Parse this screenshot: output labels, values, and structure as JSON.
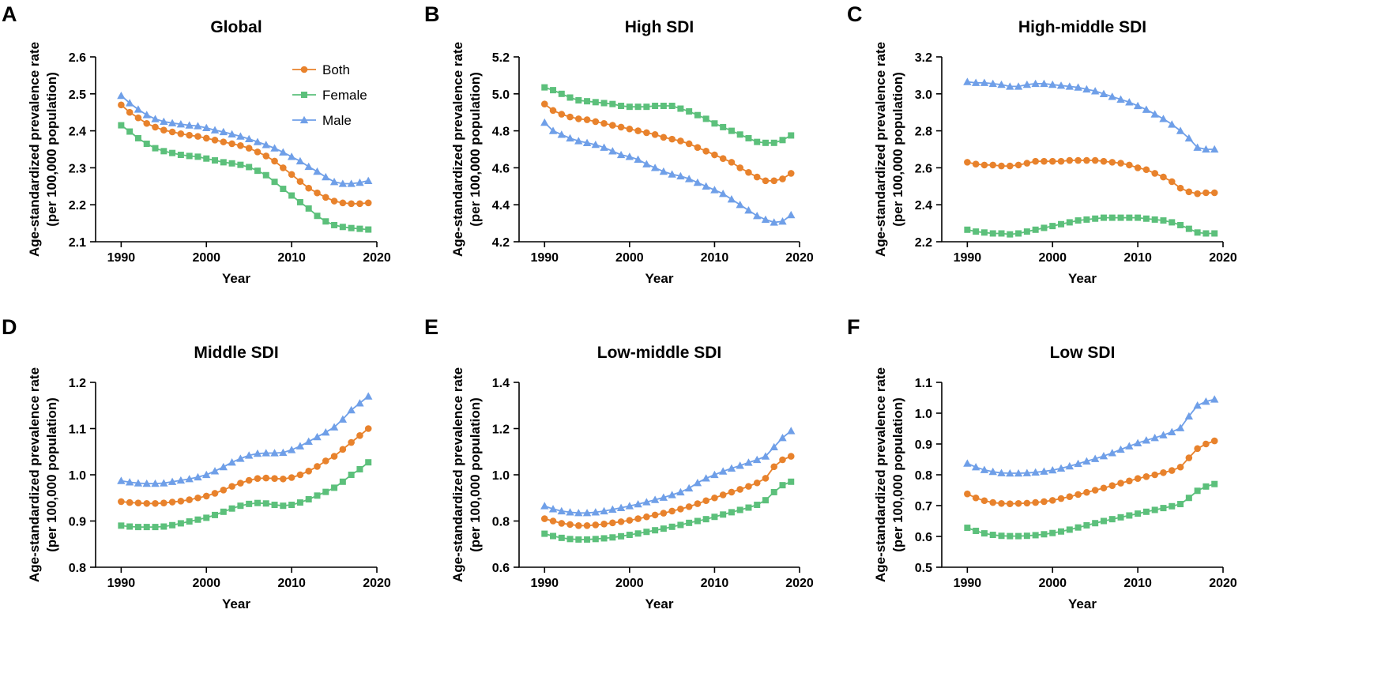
{
  "figure": {
    "legend": [
      {
        "name": "Both",
        "color": "#e8822c",
        "marker": "circle"
      },
      {
        "name": "Female",
        "color": "#5cc07b",
        "marker": "square"
      },
      {
        "name": "Male",
        "color": "#6f9fe8",
        "marker": "triangle"
      }
    ]
  },
  "chart_data": [
    {
      "type": "line",
      "panel": "A",
      "title": "Global",
      "xlabel": "Year",
      "ylabel": [
        "Age-standardized prevalence rate",
        "(per 100,000 population)"
      ],
      "xlim": [
        1987,
        2020
      ],
      "xticks": [
        1990,
        2000,
        2010,
        2020
      ],
      "ylim": [
        2.1,
        2.6
      ],
      "yticks": [
        "2.1",
        "2.2",
        "2.3",
        "2.4",
        "2.5",
        "2.6"
      ],
      "legend": true,
      "x": [
        1990,
        1991,
        1992,
        1993,
        1994,
        1995,
        1996,
        1997,
        1998,
        1999,
        2000,
        2001,
        2002,
        2003,
        2004,
        2005,
        2006,
        2007,
        2008,
        2009,
        2010,
        2011,
        2012,
        2013,
        2014,
        2015,
        2016,
        2017,
        2018,
        2019
      ],
      "series": [
        {
          "name": "Both",
          "values": [
            2.47,
            2.45,
            2.435,
            2.42,
            2.41,
            2.402,
            2.397,
            2.392,
            2.388,
            2.385,
            2.38,
            2.375,
            2.37,
            2.365,
            2.36,
            2.353,
            2.343,
            2.332,
            2.318,
            2.3,
            2.282,
            2.263,
            2.245,
            2.232,
            2.22,
            2.21,
            2.205,
            2.203,
            2.203,
            2.205
          ]
        },
        {
          "name": "Female",
          "values": [
            2.415,
            2.398,
            2.38,
            2.365,
            2.353,
            2.345,
            2.34,
            2.335,
            2.332,
            2.33,
            2.325,
            2.32,
            2.315,
            2.312,
            2.308,
            2.302,
            2.292,
            2.28,
            2.262,
            2.243,
            2.225,
            2.207,
            2.19,
            2.17,
            2.155,
            2.145,
            2.14,
            2.137,
            2.135,
            2.133
          ]
        },
        {
          "name": "Male",
          "values": [
            2.495,
            2.475,
            2.458,
            2.443,
            2.432,
            2.425,
            2.421,
            2.418,
            2.415,
            2.413,
            2.408,
            2.402,
            2.397,
            2.391,
            2.385,
            2.378,
            2.37,
            2.362,
            2.353,
            2.342,
            2.33,
            2.318,
            2.303,
            2.29,
            2.275,
            2.262,
            2.257,
            2.257,
            2.26,
            2.265
          ]
        }
      ]
    },
    {
      "type": "line",
      "panel": "B",
      "title": "High SDI",
      "xlabel": "Year",
      "ylabel": [
        "Age-standardized prevalence rate",
        "(per 100,000 population)"
      ],
      "xlim": [
        1987,
        2020
      ],
      "xticks": [
        1990,
        2000,
        2010,
        2020
      ],
      "ylim": [
        4.2,
        5.2
      ],
      "yticks": [
        "4.2",
        "4.4",
        "4.6",
        "4.8",
        "5.0",
        "5.2"
      ],
      "legend": false,
      "x": [
        1990,
        1991,
        1992,
        1993,
        1994,
        1995,
        1996,
        1997,
        1998,
        1999,
        2000,
        2001,
        2002,
        2003,
        2004,
        2005,
        2006,
        2007,
        2008,
        2009,
        2010,
        2011,
        2012,
        2013,
        2014,
        2015,
        2016,
        2017,
        2018,
        2019
      ],
      "series": [
        {
          "name": "Both",
          "values": [
            4.945,
            4.91,
            4.89,
            4.875,
            4.865,
            4.86,
            4.85,
            4.84,
            4.83,
            4.82,
            4.81,
            4.8,
            4.79,
            4.78,
            4.765,
            4.755,
            4.745,
            4.73,
            4.71,
            4.69,
            4.67,
            4.65,
            4.63,
            4.6,
            4.575,
            4.55,
            4.53,
            4.53,
            4.54,
            4.57
          ]
        },
        {
          "name": "Female",
          "values": [
            5.035,
            5.02,
            5.0,
            4.98,
            4.965,
            4.96,
            4.955,
            4.95,
            4.945,
            4.935,
            4.93,
            4.93,
            4.93,
            4.935,
            4.935,
            4.935,
            4.92,
            4.905,
            4.885,
            4.865,
            4.84,
            4.82,
            4.8,
            4.78,
            4.76,
            4.74,
            4.735,
            4.735,
            4.75,
            4.775
          ]
        },
        {
          "name": "Male",
          "values": [
            4.845,
            4.8,
            4.78,
            4.76,
            4.745,
            4.735,
            4.725,
            4.71,
            4.69,
            4.67,
            4.66,
            4.645,
            4.62,
            4.6,
            4.58,
            4.565,
            4.555,
            4.54,
            4.52,
            4.5,
            4.48,
            4.46,
            4.43,
            4.4,
            4.37,
            4.34,
            4.32,
            4.305,
            4.31,
            4.345
          ]
        }
      ]
    },
    {
      "type": "line",
      "panel": "C",
      "title": "High-middle SDI",
      "xlabel": "Year",
      "ylabel": [
        "Age-standardized prevalence rate",
        "(per 100,000 population)"
      ],
      "xlim": [
        1987,
        2020
      ],
      "xticks": [
        1990,
        2000,
        2010,
        2020
      ],
      "ylim": [
        2.2,
        3.2
      ],
      "yticks": [
        "2.2",
        "2.4",
        "2.6",
        "2.8",
        "3.0",
        "3.2"
      ],
      "legend": false,
      "x": [
        1990,
        1991,
        1992,
        1993,
        1994,
        1995,
        1996,
        1997,
        1998,
        1999,
        2000,
        2001,
        2002,
        2003,
        2004,
        2005,
        2006,
        2007,
        2008,
        2009,
        2010,
        2011,
        2012,
        2013,
        2014,
        2015,
        2016,
        2017,
        2018,
        2019
      ],
      "series": [
        {
          "name": "Both",
          "values": [
            2.63,
            2.62,
            2.615,
            2.615,
            2.61,
            2.61,
            2.615,
            2.625,
            2.635,
            2.635,
            2.635,
            2.635,
            2.64,
            2.64,
            2.64,
            2.64,
            2.635,
            2.63,
            2.625,
            2.615,
            2.6,
            2.59,
            2.57,
            2.55,
            2.525,
            2.49,
            2.47,
            2.46,
            2.465,
            2.465
          ]
        },
        {
          "name": "Female",
          "values": [
            2.265,
            2.255,
            2.25,
            2.245,
            2.245,
            2.24,
            2.245,
            2.255,
            2.265,
            2.275,
            2.285,
            2.295,
            2.305,
            2.315,
            2.32,
            2.325,
            2.33,
            2.33,
            2.33,
            2.33,
            2.33,
            2.325,
            2.32,
            2.315,
            2.305,
            2.29,
            2.27,
            2.25,
            2.245,
            2.245
          ]
        },
        {
          "name": "Male",
          "values": [
            3.065,
            3.06,
            3.06,
            3.055,
            3.05,
            3.04,
            3.04,
            3.05,
            3.055,
            3.055,
            3.05,
            3.045,
            3.04,
            3.035,
            3.025,
            3.015,
            3.0,
            2.985,
            2.97,
            2.955,
            2.935,
            2.915,
            2.89,
            2.865,
            2.835,
            2.8,
            2.76,
            2.71,
            2.7,
            2.7
          ]
        }
      ]
    },
    {
      "type": "line",
      "panel": "D",
      "title": "Middle SDI",
      "xlabel": "Year",
      "ylabel": [
        "Age-standardized prevalence rate",
        "(per 100,000 population)"
      ],
      "xlim": [
        1987,
        2020
      ],
      "xticks": [
        1990,
        2000,
        2010,
        2020
      ],
      "ylim": [
        0.8,
        1.2
      ],
      "yticks": [
        "0.8",
        "0.9",
        "1.0",
        "1.1",
        "1.2"
      ],
      "legend": false,
      "x": [
        1990,
        1991,
        1992,
        1993,
        1994,
        1995,
        1996,
        1997,
        1998,
        1999,
        2000,
        2001,
        2002,
        2003,
        2004,
        2005,
        2006,
        2007,
        2008,
        2009,
        2010,
        2011,
        2012,
        2013,
        2014,
        2015,
        2016,
        2017,
        2018,
        2019
      ],
      "series": [
        {
          "name": "Both",
          "values": [
            0.942,
            0.94,
            0.939,
            0.938,
            0.938,
            0.939,
            0.941,
            0.943,
            0.946,
            0.95,
            0.954,
            0.96,
            0.967,
            0.975,
            0.982,
            0.988,
            0.992,
            0.993,
            0.992,
            0.991,
            0.994,
            1.0,
            1.008,
            1.018,
            1.03,
            1.04,
            1.055,
            1.07,
            1.085,
            1.1
          ]
        },
        {
          "name": "Female",
          "values": [
            0.89,
            0.888,
            0.887,
            0.887,
            0.887,
            0.888,
            0.891,
            0.895,
            0.899,
            0.903,
            0.907,
            0.913,
            0.92,
            0.927,
            0.933,
            0.937,
            0.939,
            0.938,
            0.935,
            0.933,
            0.935,
            0.94,
            0.947,
            0.955,
            0.963,
            0.972,
            0.985,
            1.0,
            1.012,
            1.027
          ]
        },
        {
          "name": "Male",
          "values": [
            0.987,
            0.984,
            0.982,
            0.981,
            0.981,
            0.982,
            0.985,
            0.988,
            0.991,
            0.995,
            1.0,
            1.008,
            1.017,
            1.027,
            1.035,
            1.042,
            1.046,
            1.047,
            1.047,
            1.048,
            1.054,
            1.062,
            1.072,
            1.082,
            1.092,
            1.103,
            1.12,
            1.14,
            1.155,
            1.17
          ]
        }
      ]
    },
    {
      "type": "line",
      "panel": "E",
      "title": "Low-middle SDI",
      "xlabel": "Year",
      "ylabel": [
        "Age-standardized prevalence rate",
        "(per 100,000 population)"
      ],
      "xlim": [
        1987,
        2020
      ],
      "xticks": [
        1990,
        2000,
        2010,
        2020
      ],
      "ylim": [
        0.6,
        1.4
      ],
      "yticks": [
        "0.6",
        "0.8",
        "1.0",
        "1.2",
        "1.4"
      ],
      "legend": false,
      "x": [
        1990,
        1991,
        1992,
        1993,
        1994,
        1995,
        1996,
        1997,
        1998,
        1999,
        2000,
        2001,
        2002,
        2003,
        2004,
        2005,
        2006,
        2007,
        2008,
        2009,
        2010,
        2011,
        2012,
        2013,
        2014,
        2015,
        2016,
        2017,
        2018,
        2019
      ],
      "series": [
        {
          "name": "Both",
          "values": [
            0.81,
            0.8,
            0.79,
            0.785,
            0.78,
            0.78,
            0.783,
            0.787,
            0.792,
            0.797,
            0.803,
            0.81,
            0.818,
            0.826,
            0.834,
            0.843,
            0.852,
            0.862,
            0.875,
            0.888,
            0.9,
            0.913,
            0.925,
            0.937,
            0.95,
            0.965,
            0.985,
            1.035,
            1.065,
            1.08
          ]
        },
        {
          "name": "Female",
          "values": [
            0.745,
            0.735,
            0.727,
            0.722,
            0.72,
            0.72,
            0.722,
            0.725,
            0.729,
            0.734,
            0.74,
            0.746,
            0.753,
            0.76,
            0.767,
            0.775,
            0.783,
            0.792,
            0.8,
            0.808,
            0.818,
            0.828,
            0.838,
            0.848,
            0.858,
            0.87,
            0.89,
            0.925,
            0.955,
            0.97
          ]
        },
        {
          "name": "Male",
          "values": [
            0.865,
            0.852,
            0.843,
            0.838,
            0.835,
            0.835,
            0.838,
            0.843,
            0.85,
            0.857,
            0.865,
            0.873,
            0.882,
            0.892,
            0.902,
            0.913,
            0.925,
            0.942,
            0.965,
            0.985,
            1.0,
            1.015,
            1.028,
            1.04,
            1.053,
            1.065,
            1.08,
            1.12,
            1.16,
            1.19
          ]
        }
      ]
    },
    {
      "type": "line",
      "panel": "F",
      "title": "Low SDI",
      "xlabel": "Year",
      "ylabel": [
        "Age-standardized prevalence rate",
        "(per 100,000 population)"
      ],
      "xlim": [
        1987,
        2020
      ],
      "xticks": [
        1990,
        2000,
        2010,
        2020
      ],
      "ylim": [
        0.5,
        1.1
      ],
      "yticks": [
        "0.5",
        "0.6",
        "0.7",
        "0.8",
        "0.9",
        "1.0",
        "1.1"
      ],
      "legend": false,
      "x": [
        1990,
        1991,
        1992,
        1993,
        1994,
        1995,
        1996,
        1997,
        1998,
        1999,
        2000,
        2001,
        2002,
        2003,
        2004,
        2005,
        2006,
        2007,
        2008,
        2009,
        2010,
        2011,
        2012,
        2013,
        2014,
        2015,
        2016,
        2017,
        2018,
        2019
      ],
      "series": [
        {
          "name": "Both",
          "values": [
            0.738,
            0.725,
            0.716,
            0.71,
            0.707,
            0.706,
            0.707,
            0.708,
            0.71,
            0.713,
            0.717,
            0.723,
            0.729,
            0.736,
            0.743,
            0.75,
            0.757,
            0.765,
            0.773,
            0.78,
            0.788,
            0.794,
            0.8,
            0.807,
            0.814,
            0.825,
            0.855,
            0.885,
            0.9,
            0.91
          ]
        },
        {
          "name": "Female",
          "values": [
            0.628,
            0.618,
            0.61,
            0.605,
            0.602,
            0.601,
            0.601,
            0.602,
            0.604,
            0.607,
            0.611,
            0.616,
            0.622,
            0.629,
            0.636,
            0.643,
            0.65,
            0.656,
            0.662,
            0.668,
            0.674,
            0.68,
            0.686,
            0.692,
            0.698,
            0.705,
            0.725,
            0.748,
            0.762,
            0.77
          ]
        },
        {
          "name": "Male",
          "values": [
            0.837,
            0.825,
            0.816,
            0.81,
            0.806,
            0.805,
            0.805,
            0.806,
            0.808,
            0.811,
            0.815,
            0.821,
            0.828,
            0.836,
            0.844,
            0.852,
            0.861,
            0.871,
            0.882,
            0.893,
            0.903,
            0.912,
            0.92,
            0.929,
            0.939,
            0.952,
            0.99,
            1.025,
            1.038,
            1.045
          ]
        }
      ]
    }
  ]
}
